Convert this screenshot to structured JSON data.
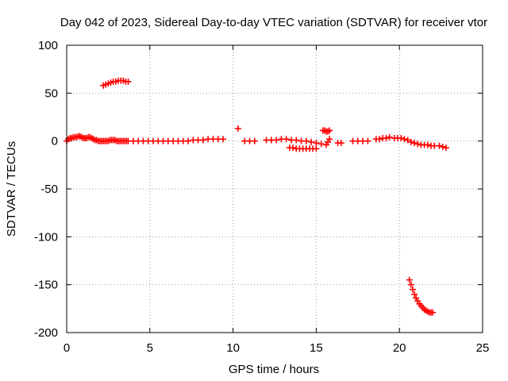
{
  "chart_data": {
    "type": "scatter",
    "title": "Day 042 of 2023, Sidereal Day-to-day VTEC variation (SDTVAR) for receiver vtor",
    "xlabel": "GPS time / hours",
    "ylabel": "SDTVAR / TECUs",
    "xlim": [
      0,
      25
    ],
    "ylim": [
      -200,
      100
    ],
    "x_ticks": [
      "0",
      "5",
      "10",
      "15",
      "20",
      "25"
    ],
    "y_ticks": [
      "100",
      "50",
      "0",
      "-50",
      "-100",
      "-150",
      "-200"
    ],
    "grid": true,
    "marker": "plus",
    "color": "#ff0000",
    "series": [
      {
        "name": "SDTVAR",
        "x": [
          0.0,
          0.1,
          0.2,
          0.3,
          0.4,
          0.5,
          0.6,
          0.7,
          0.8,
          0.9,
          1.0,
          1.1,
          1.2,
          1.3,
          1.4,
          1.5,
          1.6,
          1.7,
          1.8,
          1.9,
          2.0,
          2.1,
          2.2,
          2.3,
          2.4,
          2.5,
          2.6,
          2.7,
          2.8,
          2.9,
          3.0,
          3.1,
          3.2,
          3.3,
          3.4,
          3.5,
          3.6,
          3.7,
          2.2,
          2.35,
          2.5,
          2.65,
          2.8,
          2.95,
          3.1,
          3.25,
          3.4,
          3.55,
          3.7,
          4.0,
          4.3,
          4.6,
          4.9,
          5.2,
          5.5,
          5.8,
          6.1,
          6.4,
          6.7,
          7.0,
          7.3,
          7.6,
          7.9,
          8.2,
          8.5,
          8.8,
          9.1,
          9.4,
          10.3,
          10.7,
          11.0,
          11.3,
          12.0,
          12.3,
          12.6,
          12.9,
          13.2,
          13.5,
          13.8,
          14.1,
          14.4,
          14.7,
          15.0,
          15.3,
          13.4,
          13.6,
          13.8,
          14.0,
          14.2,
          14.4,
          14.6,
          14.8,
          15.0,
          15.4,
          15.5,
          15.6,
          15.7,
          15.8,
          15.6,
          15.7,
          15.8,
          16.3,
          16.5,
          17.2,
          17.5,
          17.8,
          18.1,
          18.6,
          18.8,
          19.0,
          19.2,
          19.4,
          19.7,
          19.9,
          20.1,
          20.3,
          20.5,
          20.7,
          20.9,
          21.1,
          21.3,
          21.5,
          21.7,
          21.9,
          22.1,
          22.4,
          22.6,
          22.8,
          20.6,
          20.7,
          20.8,
          20.9,
          21.0,
          21.1,
          21.2,
          21.3,
          21.4,
          21.5,
          21.6,
          21.7,
          21.8,
          21.9,
          22.0
        ],
        "y": [
          0,
          2,
          3,
          3,
          4,
          4,
          4,
          5,
          5,
          4,
          3,
          3,
          3,
          4,
          4,
          3,
          2,
          1,
          1,
          0,
          0,
          0,
          0,
          0,
          0,
          0,
          1,
          1,
          1,
          1,
          0,
          0,
          0,
          0,
          0,
          0,
          0,
          0,
          58,
          59,
          60,
          61,
          62,
          62,
          63,
          63,
          63,
          62,
          62,
          0,
          0,
          0,
          0,
          0,
          0,
          0,
          0,
          0,
          0,
          0,
          0,
          1,
          1,
          1,
          2,
          2,
          2,
          2,
          13,
          0,
          0,
          0,
          1,
          1,
          1,
          2,
          2,
          1,
          1,
          0,
          0,
          -1,
          -2,
          -3,
          -7,
          -7,
          -8,
          -8,
          -8,
          -8,
          -8,
          -8,
          -8,
          11,
          11,
          10,
          10,
          11,
          -4,
          -1,
          2,
          -2,
          -2,
          0,
          0,
          0,
          0,
          2,
          2,
          3,
          3,
          4,
          3,
          3,
          3,
          2,
          1,
          -1,
          -2,
          -3,
          -4,
          -4,
          -4,
          -5,
          -5,
          -5,
          -6,
          -7,
          -145,
          -150,
          -155,
          -160,
          -164,
          -167,
          -170,
          -172,
          -174,
          -176,
          -177,
          -178,
          -179,
          -179,
          -179
        ]
      }
    ]
  }
}
